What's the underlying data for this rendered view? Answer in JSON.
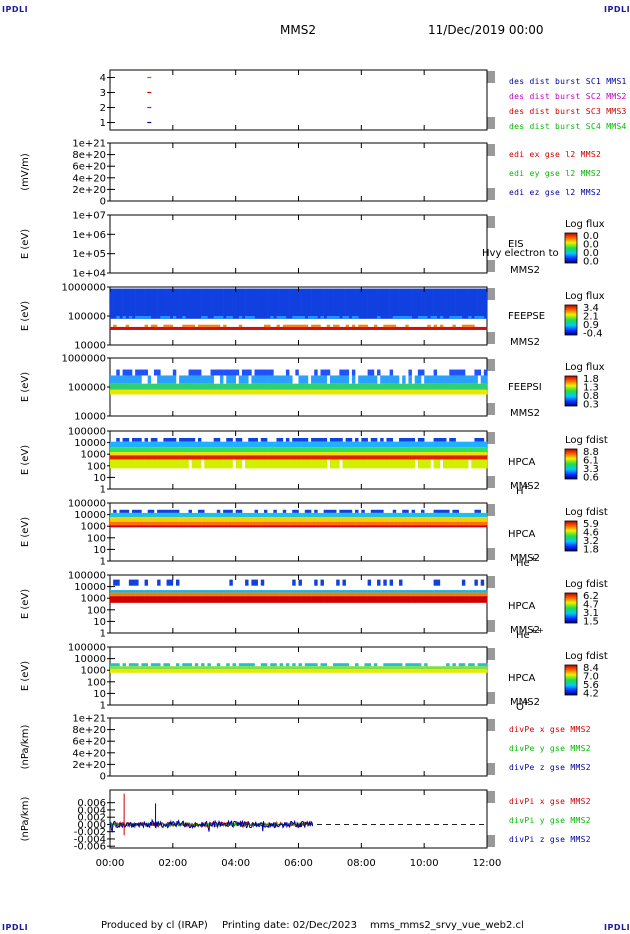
{
  "corner_label": "IPDLI",
  "header": {
    "spacecraft": "MMS2",
    "date": "11/Dec/2019 00:00"
  },
  "footer": {
    "produced_by": "Produced by cl (IRAP)",
    "printing_date": "Printing date: 02/Dec/2023",
    "script_name": "mms_mms2_srvy_vue_web2.cl"
  },
  "x_axis": {
    "tick_labels": [
      "00:00",
      "02:00",
      "04:00",
      "06:00",
      "08:00",
      "10:00",
      "12:00"
    ]
  },
  "chart_data": [
    {
      "type": "scatter",
      "title": "",
      "ylabel": "",
      "ylim": [
        0.5,
        4.5
      ],
      "tick_labels": [
        "4",
        "3",
        "2",
        "1"
      ],
      "tick_values": [
        4,
        3,
        2,
        1
      ],
      "legend": [
        "des dist burst SC1 MMS1",
        "des dist burst SC2 MMS2",
        "des dist burst SC3 MMS3",
        "des dist burst SC4 MMS4"
      ],
      "series": [
        {
          "name": "des dist burst SC1 MMS1",
          "color": "#0000a0",
          "x_hours": [
            1.25
          ],
          "y": [
            1
          ]
        },
        {
          "name": "des dist burst SC2 MMS2",
          "color": "#c000c0",
          "x_hours": [
            1.25
          ],
          "y": [
            2
          ]
        },
        {
          "name": "des dist burst SC3 MMS3",
          "color": "#cc0000",
          "x_hours": [
            1.25
          ],
          "y": [
            3
          ]
        },
        {
          "name": "des dist burst SC4 MMS4",
          "color": "#00bb00",
          "x_hours": [
            1.25
          ],
          "y": [
            4
          ]
        }
      ]
    },
    {
      "type": "line",
      "ylabel": "(mV/m)",
      "ylim": [
        0,
        1e+21
      ],
      "tick_labels": [
        "1e+21",
        "8e+20",
        "6e+20",
        "4e+20",
        "2e+20",
        "0"
      ],
      "tick_values": [
        1e+21,
        8e+20,
        6e+20,
        4e+20,
        2e+20,
        0
      ],
      "zero_line": true,
      "legend": [
        "edi ex gse l2 MMS2",
        "edi ey gse l2 MMS2",
        "edi ez gse l2 MMS2"
      ],
      "legend_colors": [
        "#cc0000",
        "#00bb00",
        "#0000a0"
      ]
    },
    {
      "type": "heatmap",
      "ylabel": "E (eV)",
      "ylim": [
        10000.0,
        10000000.0
      ],
      "tick_labels": [
        "1e+07",
        "1e+06",
        "1e+05",
        "1e+04"
      ],
      "instrument": "EIS",
      "overlay_text": "Hvy electron to",
      "spacecraft": "MMS2",
      "colorbar_title": "Log flux",
      "colorbar_labels": [
        "0.0",
        "0.0",
        "0.0",
        "0.0"
      ]
    },
    {
      "type": "heatmap",
      "ylabel": "E (eV)",
      "ylim": [
        10000.0,
        1000000.0
      ],
      "tick_labels": [
        "1000000",
        "100000",
        "10000"
      ],
      "instrument": "FEEPSE",
      "spacecraft": "MMS2",
      "colorbar_title": "Log flux",
      "colorbar_labels": [
        "3.4",
        "2.1",
        "0.9",
        "-0.4"
      ]
    },
    {
      "type": "heatmap",
      "ylabel": "E (eV)",
      "ylim": [
        10000.0,
        1000000.0
      ],
      "tick_labels": [
        "1000000",
        "100000",
        "10000"
      ],
      "instrument": "FEEPSI",
      "spacecraft": "MMS2",
      "colorbar_title": "Log flux",
      "colorbar_labels": [
        "1.8",
        "1.3",
        "0.8",
        "0.3"
      ]
    },
    {
      "type": "heatmap",
      "ylabel": "E (eV)",
      "ylim": [
        1,
        100000.0
      ],
      "tick_labels": [
        "100000",
        "10000",
        "1000",
        "100",
        "10",
        "1"
      ],
      "instrument": "HPCA",
      "spacecraft": "MMS2",
      "species": "H",
      "species_charge": "+",
      "colorbar_title": "Log fdist",
      "colorbar_labels": [
        "8.8",
        "6.1",
        "3.3",
        "0.6"
      ]
    },
    {
      "type": "heatmap",
      "ylabel": "E (eV)",
      "ylim": [
        1,
        100000.0
      ],
      "tick_labels": [
        "100000",
        "10000",
        "1000",
        "100",
        "10",
        "1"
      ],
      "instrument": "HPCA",
      "spacecraft": "MMS2",
      "species": "He",
      "species_charge": "+",
      "colorbar_title": "Log fdist",
      "colorbar_labels": [
        "5.9",
        "4.6",
        "3.2",
        "1.8"
      ]
    },
    {
      "type": "heatmap",
      "ylabel": "E (eV)",
      "ylim": [
        1,
        100000.0
      ],
      "tick_labels": [
        "100000",
        "10000",
        "1000",
        "100",
        "10",
        "1"
      ],
      "instrument": "HPCA",
      "spacecraft": "MMS2",
      "species": "He",
      "species_charge": "++",
      "colorbar_title": "Log fdist",
      "colorbar_labels": [
        "6.2",
        "4.7",
        "3.1",
        "1.5"
      ]
    },
    {
      "type": "heatmap",
      "ylabel": "E (eV)",
      "ylim": [
        1,
        100000.0
      ],
      "tick_labels": [
        "100000",
        "10000",
        "1000",
        "100",
        "10",
        "1"
      ],
      "instrument": "HPCA",
      "spacecraft": "MMS2",
      "species": "O",
      "species_charge": "+",
      "colorbar_title": "Log fdist",
      "colorbar_labels": [
        "8.4",
        "7.0",
        "5.6",
        "4.2"
      ]
    },
    {
      "type": "line",
      "ylabel": "(nPa/km)",
      "ylim": [
        0,
        1e+21
      ],
      "tick_labels": [
        "1e+21",
        "8e+20",
        "6e+20",
        "4e+20",
        "2e+20",
        "0"
      ],
      "tick_values": [
        1e+21,
        8e+20,
        6e+20,
        4e+20,
        2e+20,
        0
      ],
      "zero_line": true,
      "legend": [
        "divPe x gse MMS2",
        "divPe y gse MMS2",
        "divPe z gse MMS2"
      ],
      "legend_colors": [
        "#cc0000",
        "#00bb00",
        "#0000a0"
      ]
    },
    {
      "type": "line",
      "ylabel": "(nPa/km)",
      "ylim": [
        -0.0065,
        0.0095
      ],
      "tick_labels": [
        "0.006",
        "0.004",
        "0.002",
        "0.000",
        "-0.002",
        "-0.004",
        "-0.006"
      ],
      "tick_values": [
        0.006,
        0.004,
        0.002,
        0.0,
        -0.002,
        -0.004,
        -0.006
      ],
      "zero_line": true,
      "x_range_hours": [
        0,
        6.45
      ],
      "legend": [
        "divPi x gse MMS2",
        "divPi y gse MMS2",
        "divPi z gse MMS2"
      ],
      "legend_colors": [
        "#cc0000",
        "#00bb00",
        "#0000a0"
      ]
    }
  ]
}
